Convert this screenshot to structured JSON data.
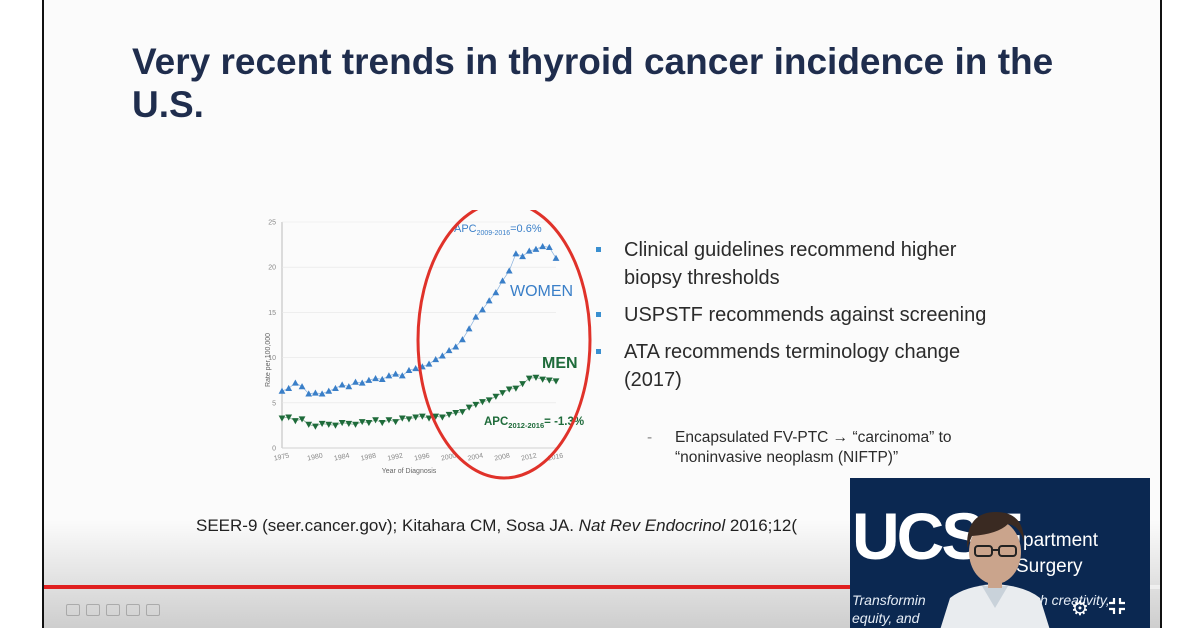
{
  "slide": {
    "title": "Very recent trends in thyroid cancer incidence in the U.S.",
    "bullets": [
      "Clinical guidelines recommend higher biopsy thresholds",
      "USPSTF recommends against screening",
      "ATA recommends terminology change (2017)"
    ],
    "sub_bullet": "Encapsulated FV-PTC → “carcinoma” to “noninvasive neoplasm (NIFTP)”",
    "citation": {
      "prefix": "SEER-9 (seer.cancer.gov); Kitahara CM, Sosa JA. ",
      "journal": "Nat Rev Endocrinol",
      "suffix": " 2016;12("
    }
  },
  "chart_data": {
    "type": "scatter",
    "xlabel": "Year of Diagnosis",
    "ylabel": "Rate per 100,000",
    "xlim": [
      1975,
      2016
    ],
    "ylim": [
      0,
      25
    ],
    "x_ticks": [
      "1975",
      "1980",
      "1984",
      "1988",
      "1992",
      "1996",
      "2000",
      "2004",
      "2008",
      "2012",
      "2016"
    ],
    "y_ticks": [
      "0",
      "5",
      "10",
      "15",
      "20",
      "25"
    ],
    "x": [
      1975,
      1976,
      1977,
      1978,
      1979,
      1980,
      1981,
      1982,
      1983,
      1984,
      1985,
      1986,
      1987,
      1988,
      1989,
      1990,
      1991,
      1992,
      1993,
      1994,
      1995,
      1996,
      1997,
      1998,
      1999,
      2000,
      2001,
      2002,
      2003,
      2004,
      2005,
      2006,
      2007,
      2008,
      2009,
      2010,
      2011,
      2012,
      2013,
      2014,
      2015,
      2016
    ],
    "series": [
      {
        "name": "WOMEN",
        "color": "#3a7fc8",
        "marker": "triangle-up",
        "values": [
          6.3,
          6.6,
          7.2,
          6.8,
          6.0,
          6.1,
          6.0,
          6.3,
          6.6,
          7.0,
          6.8,
          7.3,
          7.2,
          7.5,
          7.7,
          7.6,
          8.0,
          8.2,
          8.0,
          8.6,
          8.8,
          9.0,
          9.3,
          9.8,
          10.2,
          10.8,
          11.2,
          12.0,
          13.2,
          14.5,
          15.3,
          16.3,
          17.2,
          18.5,
          19.6,
          21.5,
          21.2,
          21.8,
          22.0,
          22.3,
          22.2,
          21.0
        ]
      },
      {
        "name": "MEN",
        "color": "#1e6b3a",
        "marker": "triangle-down",
        "values": [
          3.3,
          3.4,
          3.0,
          3.2,
          2.6,
          2.4,
          2.7,
          2.6,
          2.5,
          2.8,
          2.7,
          2.6,
          2.9,
          2.8,
          3.1,
          2.8,
          3.1,
          2.9,
          3.3,
          3.2,
          3.4,
          3.5,
          3.3,
          3.5,
          3.4,
          3.7,
          3.9,
          4.0,
          4.5,
          4.8,
          5.1,
          5.3,
          5.7,
          6.1,
          6.5,
          6.6,
          7.1,
          7.7,
          7.8,
          7.6,
          7.5,
          7.4
        ]
      }
    ],
    "annotations": {
      "women_apc": {
        "label": "APC",
        "sub": "2009-2016",
        "value": "=0.6%"
      },
      "men_apc": {
        "label": "APC",
        "sub": "2012-2016",
        "value": "= -1.3%"
      },
      "women_label": "WOMEN",
      "men_label": "MEN"
    },
    "highlight_color": "#e0322a"
  },
  "webcam": {
    "logo": "UCSF",
    "dept_line1": "partment",
    "dept_line2": "Surgery",
    "tagline_line1": "Transformin",
    "tagline_line1b": "h creativity,",
    "tagline_line2": "equity, and"
  },
  "player": {
    "progress": 0.98,
    "accent": "#e02020"
  },
  "icons": {
    "settings": "gear-icon",
    "exit_fullscreen": "exit-fullscreen-icon"
  }
}
